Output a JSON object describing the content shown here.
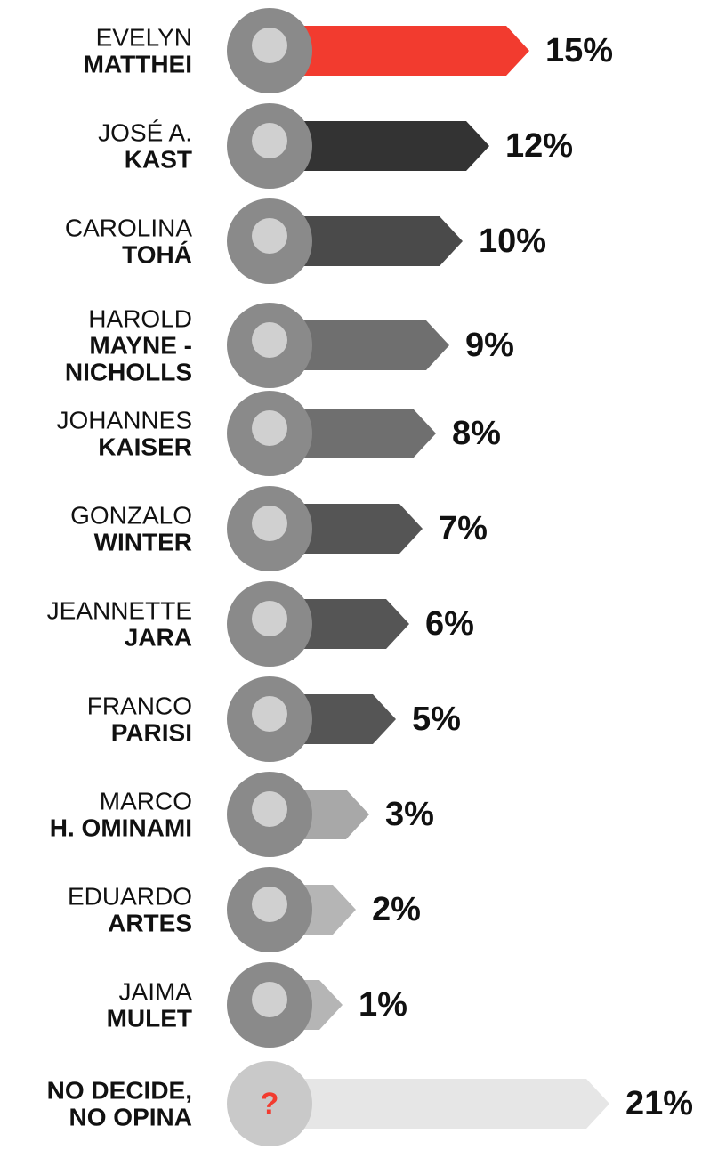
{
  "chart_data": {
    "type": "bar",
    "categories": [
      {
        "first": "EVELYN",
        "last": [
          "MATTHEI"
        ]
      },
      {
        "first": "JOSÉ A.",
        "last": [
          "KAST"
        ]
      },
      {
        "first": "CAROLINA",
        "last": [
          "TOHÁ"
        ]
      },
      {
        "first": "HAROLD",
        "last": [
          "MAYNE -",
          "NICHOLLS"
        ]
      },
      {
        "first": "JOHANNES",
        "last": [
          "KAISER"
        ]
      },
      {
        "first": "GONZALO",
        "last": [
          "WINTER"
        ]
      },
      {
        "first": "JEANNETTE",
        "last": [
          "JARA"
        ]
      },
      {
        "first": "FRANCO",
        "last": [
          "PARISI"
        ]
      },
      {
        "first": "MARCO",
        "last": [
          "H. OMINAMI"
        ]
      },
      {
        "first": "EDUARDO",
        "last": [
          "ARTES"
        ]
      },
      {
        "first": "JAIMA",
        "last": [
          "MULET"
        ]
      },
      {
        "first": null,
        "last": [
          "NO DECIDE,",
          "NO OPINA"
        ]
      }
    ],
    "values": [
      15,
      12,
      10,
      9,
      8,
      7,
      6,
      5,
      3,
      2,
      1,
      21
    ],
    "value_labels": [
      "15%",
      "12%",
      "10%",
      "9%",
      "8%",
      "7%",
      "6%",
      "5%",
      "3%",
      "2%",
      "1%",
      "21%"
    ],
    "colors": [
      "#f23b2f",
      "#333333",
      "#4a4a4a",
      "#6f6f6f",
      "#6f6f6f",
      "#555555",
      "#555555",
      "#555555",
      "#a8a8a8",
      "#b5b5b5",
      "#b5b5b5",
      "#e6e6e6"
    ],
    "unknown_mark": "?"
  }
}
